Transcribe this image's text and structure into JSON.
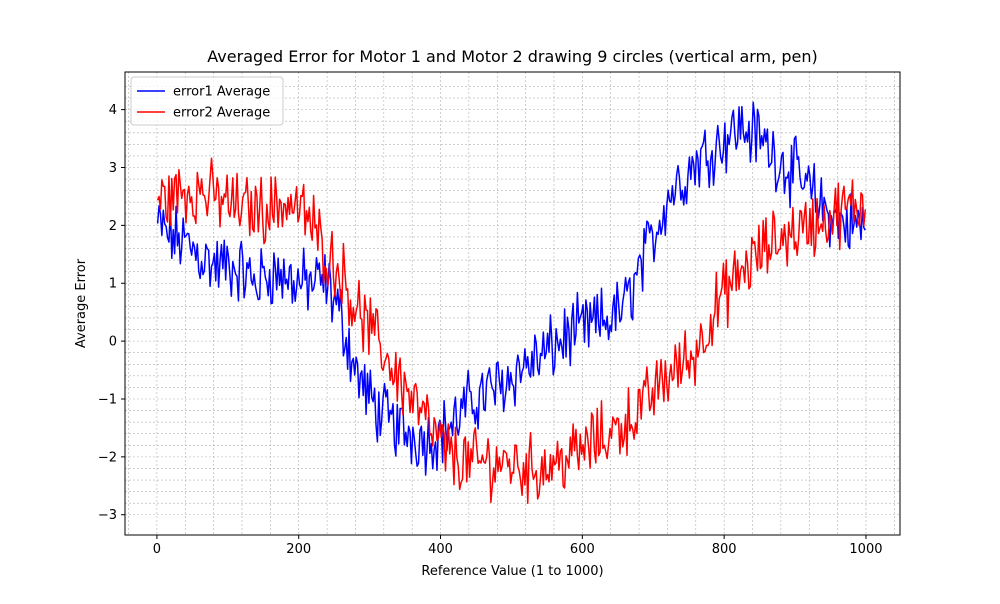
{
  "chart_data": {
    "type": "line",
    "title": "Averaged Error for Motor 1 and Motor 2 drawing 9 circles (vertical arm, pen)",
    "xlabel": "Reference Value (1 to 1000)",
    "ylabel": "Average Error",
    "xlim": [
      -45,
      1048
    ],
    "ylim": [
      -3.35,
      4.65
    ],
    "x_ticks": [
      0,
      200,
      400,
      600,
      800,
      1000
    ],
    "y_ticks": [
      -3,
      -2,
      -1,
      0,
      1,
      2,
      3,
      4
    ],
    "x_tick_labels": [
      "0",
      "200",
      "400",
      "600",
      "800",
      "1000"
    ],
    "y_tick_labels": [
      "−3",
      "−2",
      "−1",
      "0",
      "1",
      "2",
      "3",
      "4"
    ],
    "grid": "on (major and minor, dashed)",
    "legend": "upper-left",
    "series": [
      {
        "name": "error1 Average",
        "color": "#0000ff",
        "x": [
          0,
          20,
          40,
          60,
          80,
          100,
          120,
          140,
          160,
          180,
          200,
          220,
          240,
          260,
          280,
          300,
          320,
          340,
          360,
          380,
          400,
          420,
          440,
          460,
          480,
          500,
          520,
          540,
          560,
          580,
          600,
          620,
          640,
          660,
          680,
          700,
          720,
          740,
          760,
          780,
          800,
          820,
          840,
          860,
          880,
          900,
          920,
          940,
          960,
          980,
          1000
        ],
        "y": [
          2.0,
          1.8,
          1.7,
          1.5,
          1.3,
          1.3,
          1.2,
          1.0,
          1.2,
          1.1,
          1.0,
          1.0,
          1.0,
          0.4,
          -0.5,
          -1.0,
          -1.3,
          -1.5,
          -1.6,
          -1.7,
          -1.6,
          -1.4,
          -1.1,
          -0.9,
          -0.8,
          -0.6,
          -0.4,
          -0.3,
          -0.1,
          0.1,
          0.2,
          0.3,
          0.4,
          0.6,
          1.2,
          1.8,
          2.5,
          2.8,
          3.1,
          3.3,
          3.5,
          3.7,
          3.6,
          3.4,
          3.1,
          2.9,
          2.6,
          2.3,
          2.1,
          2.0,
          2.0
        ]
      },
      {
        "name": "error2 Average",
        "color": "#ff0000",
        "x": [
          0,
          20,
          40,
          60,
          80,
          100,
          120,
          140,
          160,
          180,
          200,
          220,
          240,
          260,
          280,
          300,
          320,
          340,
          360,
          380,
          400,
          420,
          440,
          460,
          480,
          500,
          520,
          540,
          560,
          580,
          600,
          620,
          640,
          660,
          680,
          700,
          720,
          740,
          760,
          780,
          800,
          820,
          840,
          860,
          880,
          900,
          920,
          940,
          960,
          980,
          1000
        ],
        "y": [
          2.4,
          2.5,
          2.6,
          2.6,
          2.5,
          2.4,
          2.3,
          2.3,
          2.3,
          2.4,
          2.3,
          2.0,
          1.5,
          1.2,
          0.6,
          0.2,
          -0.2,
          -0.6,
          -1.0,
          -1.4,
          -1.8,
          -2.0,
          -2.1,
          -2.1,
          -2.1,
          -2.1,
          -2.2,
          -2.2,
          -2.1,
          -2.0,
          -1.9,
          -1.7,
          -1.6,
          -1.4,
          -1.2,
          -0.9,
          -0.6,
          -0.4,
          -0.2,
          0.4,
          0.8,
          1.1,
          1.4,
          1.6,
          1.8,
          1.9,
          2.0,
          2.1,
          2.2,
          2.3,
          2.4
        ]
      }
    ]
  }
}
